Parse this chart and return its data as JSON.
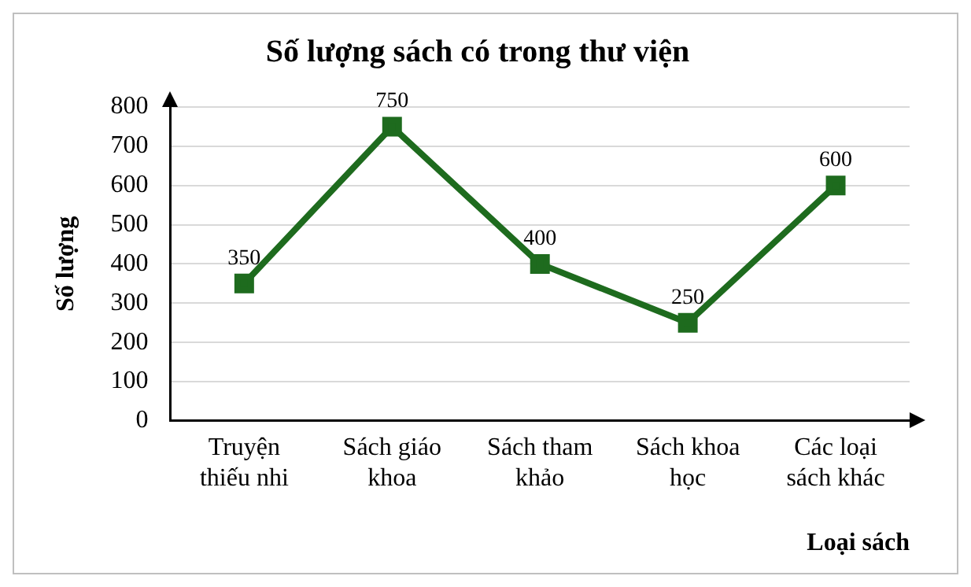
{
  "chart_data": {
    "type": "line",
    "title": "Số lượng sách có trong thư viện",
    "xlabel": "Loại sách",
    "ylabel": "Số lượng",
    "categories": [
      "Truyện thiếu nhi",
      "Sách giáo khoa",
      "Sách tham khảo",
      "Sách khoa học",
      "Các loại sách khác"
    ],
    "series": [
      {
        "color": "#1e6b1e",
        "values": [
          350,
          750,
          400,
          250,
          600
        ]
      }
    ],
    "ylim": [
      0,
      800
    ],
    "yticks": [
      0,
      100,
      200,
      300,
      400,
      500,
      600,
      700,
      800
    ],
    "grid": "y",
    "marker": "square",
    "line_style": "solid",
    "data_labels": true,
    "legend": false
  }
}
